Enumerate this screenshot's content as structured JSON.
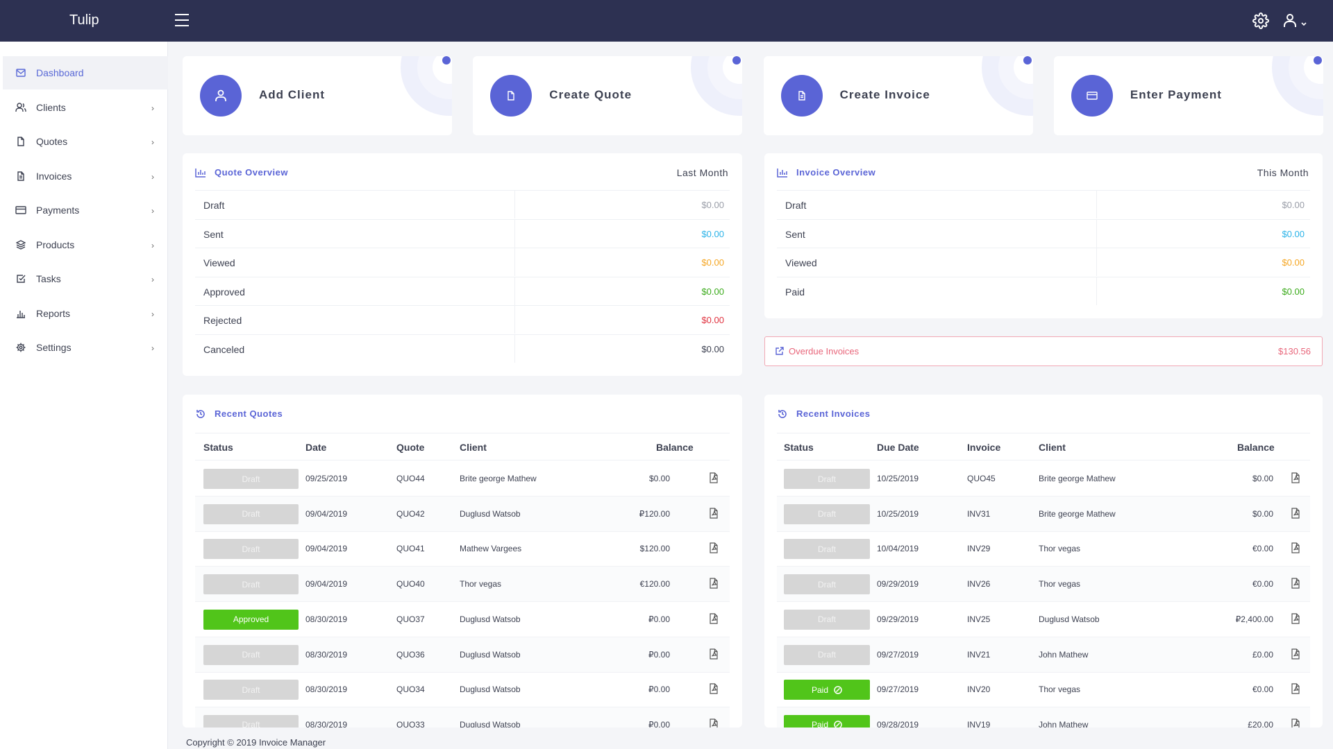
{
  "app": {
    "brand": "Tulip"
  },
  "sidebar": {
    "items": [
      {
        "label": "Dashboard",
        "icon": "envelope-icon",
        "active": true
      },
      {
        "label": "Clients",
        "icon": "users-icon"
      },
      {
        "label": "Quotes",
        "icon": "file-icon"
      },
      {
        "label": "Invoices",
        "icon": "file-text-icon"
      },
      {
        "label": "Payments",
        "icon": "credit-card-icon"
      },
      {
        "label": "Products",
        "icon": "layers-icon"
      },
      {
        "label": "Tasks",
        "icon": "check-square-icon"
      },
      {
        "label": "Reports",
        "icon": "bar-chart-icon"
      },
      {
        "label": "Settings",
        "icon": "gear-icon"
      }
    ]
  },
  "quick_actions": [
    {
      "label": "Add Client",
      "icon": "user-icon"
    },
    {
      "label": "Create Quote",
      "icon": "file-icon"
    },
    {
      "label": "Create Invoice",
      "icon": "file-text-icon"
    },
    {
      "label": "Enter Payment",
      "icon": "credit-card-icon"
    }
  ],
  "quote_overview": {
    "title": "Quote Overview",
    "period": "Last Month",
    "rows": [
      {
        "label": "Draft",
        "value": "$0.00",
        "color": "#9a9ea8"
      },
      {
        "label": "Sent",
        "value": "$0.00",
        "color": "#2bb3e8"
      },
      {
        "label": "Viewed",
        "value": "$0.00",
        "color": "#f5a623"
      },
      {
        "label": "Approved",
        "value": "$0.00",
        "color": "#3aaa1a"
      },
      {
        "label": "Rejected",
        "value": "$0.00",
        "color": "#e0323f"
      },
      {
        "label": "Canceled",
        "value": "$0.00",
        "color": "#3d4151"
      }
    ]
  },
  "invoice_overview": {
    "title": "Invoice Overview",
    "period": "This Month",
    "rows": [
      {
        "label": "Draft",
        "value": "$0.00",
        "color": "#9a9ea8"
      },
      {
        "label": "Sent",
        "value": "$0.00",
        "color": "#2bb3e8"
      },
      {
        "label": "Viewed",
        "value": "$0.00",
        "color": "#f5a623"
      },
      {
        "label": "Paid",
        "value": "$0.00",
        "color": "#3aaa1a"
      }
    ]
  },
  "overdue": {
    "label": "Overdue Invoices",
    "value": "$130.56"
  },
  "recent_quotes": {
    "title": "Recent Quotes",
    "columns": [
      "Status",
      "Date",
      "Quote",
      "Client",
      "Balance"
    ],
    "rows": [
      {
        "status": "Draft",
        "date": "09/25/2019",
        "number": "QUO44",
        "client": "Brite george Mathew",
        "balance": "$0.00"
      },
      {
        "status": "Draft",
        "date": "09/04/2019",
        "number": "QUO42",
        "client": "Duglusd Watsob",
        "balance": "₽120.00"
      },
      {
        "status": "Draft",
        "date": "09/04/2019",
        "number": "QUO41",
        "client": "Mathew Vargees",
        "balance": "$120.00"
      },
      {
        "status": "Draft",
        "date": "09/04/2019",
        "number": "QUO40",
        "client": "Thor vegas",
        "balance": "€120.00"
      },
      {
        "status": "Approved",
        "date": "08/30/2019",
        "number": "QUO37",
        "client": "Duglusd Watsob",
        "balance": "₽0.00"
      },
      {
        "status": "Draft",
        "date": "08/30/2019",
        "number": "QUO36",
        "client": "Duglusd Watsob",
        "balance": "₽0.00"
      },
      {
        "status": "Draft",
        "date": "08/30/2019",
        "number": "QUO34",
        "client": "Duglusd Watsob",
        "balance": "₽0.00"
      },
      {
        "status": "Draft",
        "date": "08/30/2019",
        "number": "QUO33",
        "client": "Duglusd Watsob",
        "balance": "₽0.00"
      }
    ]
  },
  "recent_invoices": {
    "title": "Recent Invoices",
    "columns": [
      "Status",
      "Due Date",
      "Invoice",
      "Client",
      "Balance"
    ],
    "rows": [
      {
        "status": "Draft",
        "date": "10/25/2019",
        "number": "QUO45",
        "client": "Brite george Mathew",
        "balance": "$0.00"
      },
      {
        "status": "Draft",
        "date": "10/25/2019",
        "number": "INV31",
        "client": "Brite george Mathew",
        "balance": "$0.00"
      },
      {
        "status": "Draft",
        "date": "10/04/2019",
        "number": "INV29",
        "client": "Thor vegas",
        "balance": "€0.00"
      },
      {
        "status": "Draft",
        "date": "09/29/2019",
        "number": "INV26",
        "client": "Thor vegas",
        "balance": "€0.00"
      },
      {
        "status": "Draft",
        "date": "09/29/2019",
        "number": "INV25",
        "client": "Duglusd Watsob",
        "balance": "₽2,400.00"
      },
      {
        "status": "Draft",
        "date": "09/27/2019",
        "number": "INV21",
        "client": "John Mathew",
        "balance": "£0.00"
      },
      {
        "status": "Paid",
        "date": "09/27/2019",
        "number": "INV20",
        "client": "Thor vegas",
        "balance": "€0.00"
      },
      {
        "status": "Paid",
        "date": "09/28/2019",
        "number": "INV19",
        "client": "John Mathew",
        "balance": "£20.00"
      }
    ]
  },
  "footer": {
    "text": "Copyright © 2019 Invoice Manager"
  }
}
